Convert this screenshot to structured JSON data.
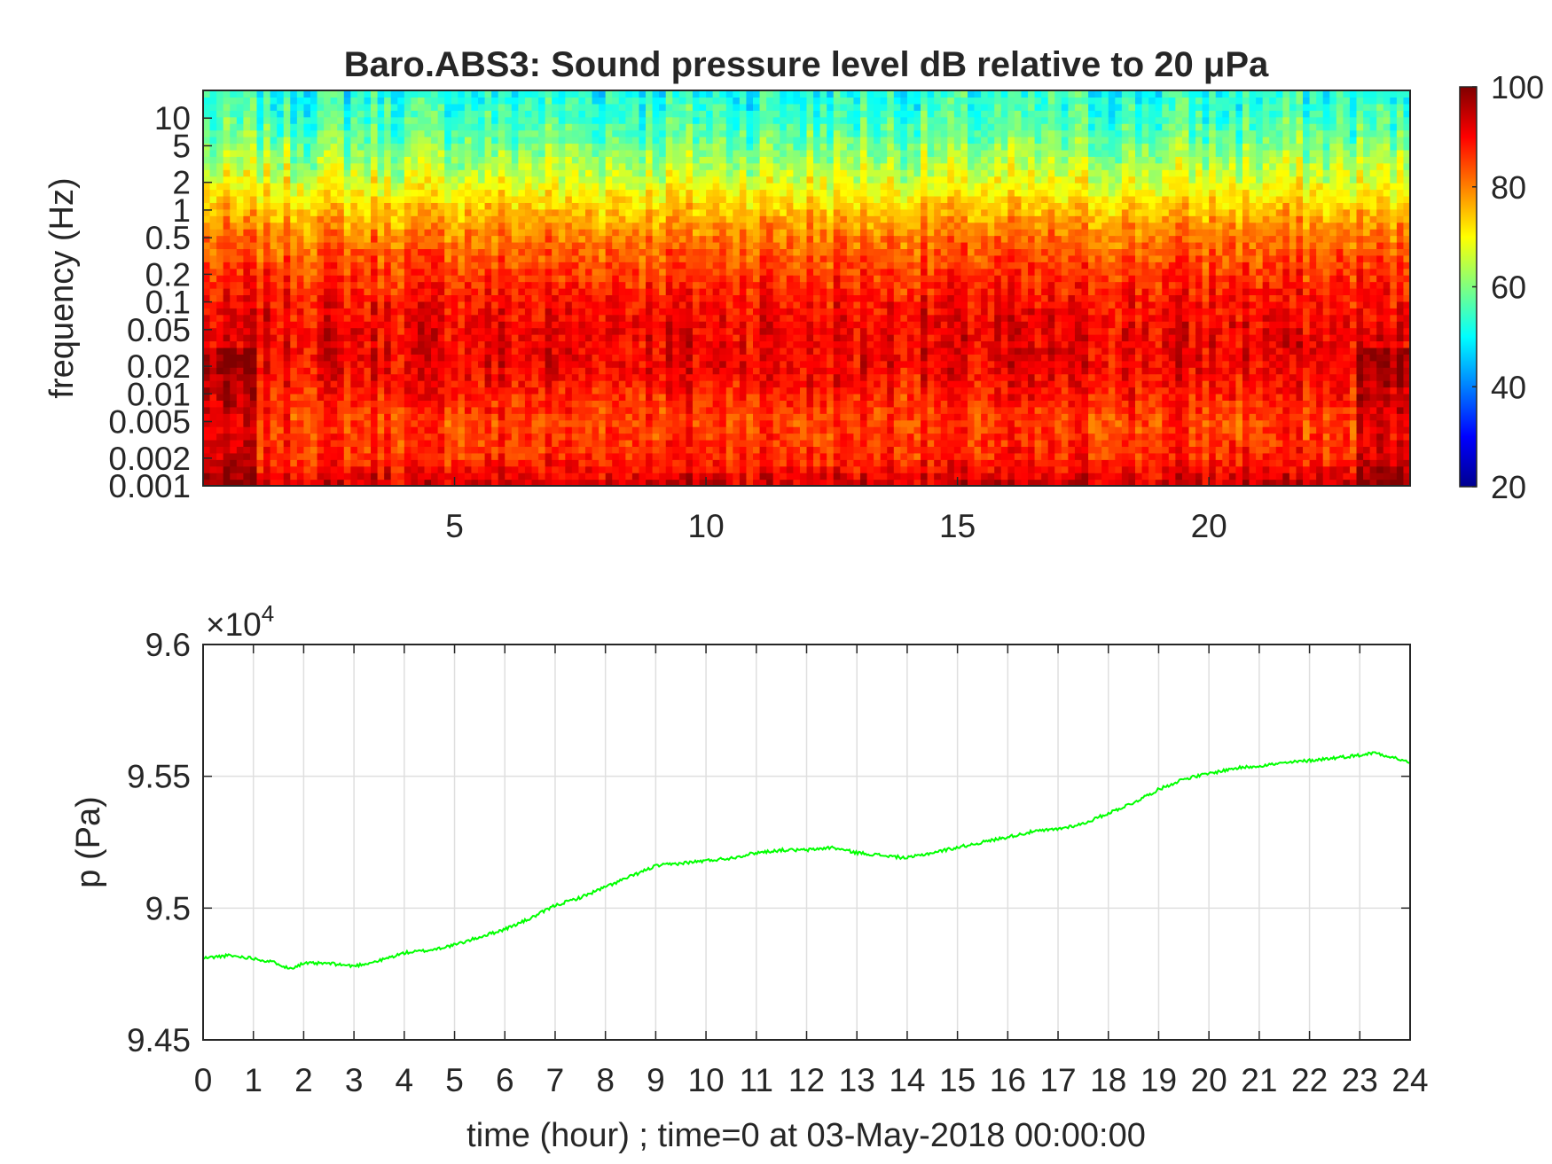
{
  "chart_data": [
    {
      "type": "heatmap",
      "title": "Baro.ABS3: Sound pressure level dB relative to 20 μPa",
      "xlabel": "",
      "ylabel": "frequency (Hz)",
      "x_ticks": [
        5,
        10,
        15,
        20
      ],
      "xlim": [
        0,
        24
      ],
      "y_scale": "log",
      "y_ticks": [
        "10",
        "5",
        "2",
        "1",
        "0.5",
        "0.2",
        "0.1",
        "0.05",
        "0.02",
        "0.01",
        "0.005",
        "0.002",
        "0.001"
      ],
      "ylim": [
        0.001,
        20
      ],
      "colormap": "jet",
      "colorbar": {
        "ticks": [
          100,
          80,
          60,
          40,
          20
        ],
        "range": [
          20,
          100
        ]
      },
      "level_profile": [
        {
          "frequency": 20,
          "db": 52
        },
        {
          "frequency": 10,
          "db": 55
        },
        {
          "frequency": 5,
          "db": 60
        },
        {
          "frequency": 2,
          "db": 68
        },
        {
          "frequency": 1,
          "db": 75
        },
        {
          "frequency": 0.5,
          "db": 81
        },
        {
          "frequency": 0.2,
          "db": 86
        },
        {
          "frequency": 0.1,
          "db": 89
        },
        {
          "frequency": 0.05,
          "db": 91
        },
        {
          "frequency": 0.02,
          "db": 91
        },
        {
          "frequency": 0.01,
          "db": 88
        },
        {
          "frequency": 0.005,
          "db": 85
        },
        {
          "frequency": 0.002,
          "db": 87
        },
        {
          "frequency": 0.001,
          "db": 94
        }
      ]
    },
    {
      "type": "line",
      "xlabel": "time (hour) ; time=0 at 03-May-2018 00:00:00",
      "ylabel": "p (Pa)",
      "y_exponent": "×10",
      "y_exponent_power": "4",
      "xlim": [
        0,
        24
      ],
      "ylim": [
        9.45,
        9.6
      ],
      "x_ticks": [
        0,
        1,
        2,
        3,
        4,
        5,
        6,
        7,
        8,
        9,
        10,
        11,
        12,
        13,
        14,
        15,
        16,
        17,
        18,
        19,
        20,
        21,
        22,
        23,
        24
      ],
      "y_ticks": [
        "9.6",
        "9.55",
        "9.5",
        "9.45"
      ],
      "grid": true,
      "line_color": "#00ff00",
      "series": [
        {
          "x": [
            0,
            0.5,
            1,
            1.5,
            1.7,
            2,
            2.5,
            3,
            3.5,
            4,
            4.5,
            5,
            5.5,
            6,
            6.5,
            7,
            7.5,
            8,
            8.5,
            9,
            9.5,
            10,
            10.5,
            11,
            11.5,
            12,
            12.5,
            13,
            13.5,
            14,
            14.5,
            15,
            15.5,
            16,
            16.5,
            17,
            17.5,
            18,
            18.5,
            19,
            19.5,
            20,
            20.5,
            21,
            21.5,
            22,
            22.5,
            23,
            23.3,
            23.7,
            24
          ],
          "values": [
            9.481,
            9.482,
            9.481,
            9.479,
            9.477,
            9.479,
            9.479,
            9.478,
            9.48,
            9.483,
            9.484,
            9.486,
            9.489,
            9.492,
            9.496,
            9.501,
            9.504,
            9.508,
            9.512,
            9.516,
            9.517,
            9.518,
            9.519,
            9.521,
            9.522,
            9.522,
            9.523,
            9.521,
            9.52,
            9.519,
            9.521,
            9.523,
            9.525,
            9.527,
            9.529,
            9.53,
            9.532,
            9.536,
            9.54,
            9.545,
            9.549,
            9.551,
            9.553,
            9.554,
            9.555,
            9.556,
            9.557,
            9.558,
            9.559,
            9.557,
            9.555
          ]
        }
      ]
    }
  ]
}
